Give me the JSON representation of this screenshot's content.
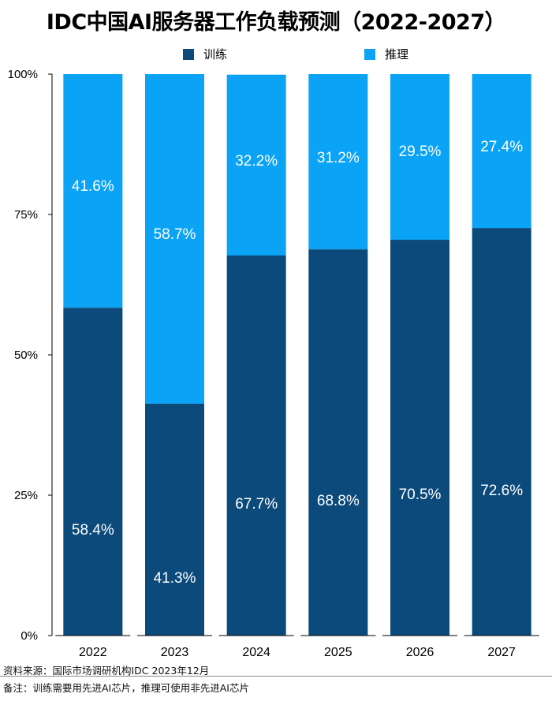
{
  "title": "IDC中国AI服务器工作负载预测（2022-2027）",
  "legend": [
    {
      "name": "训练",
      "color": "#0b4a7a"
    },
    {
      "name": "推理",
      "color": "#0aa3f5"
    }
  ],
  "footnotes": {
    "source": "资料来源：国际市场调研机构IDC 2023年12月",
    "note": "备注：训练需要用先进AI芯片，推理可使用非先进AI芯片"
  },
  "chart_data": {
    "type": "bar",
    "stacked": true,
    "categories": [
      "2022",
      "2023",
      "2024",
      "2025",
      "2026",
      "2027"
    ],
    "series": [
      {
        "name": "训练",
        "color": "#0b4a7a",
        "values": [
          58.4,
          41.3,
          67.7,
          68.8,
          70.5,
          72.6
        ],
        "labels": [
          "58.4%",
          "41.3%",
          "67.7%",
          "68.8%",
          "70.5%",
          "72.6%"
        ]
      },
      {
        "name": "推理",
        "color": "#0aa3f5",
        "values": [
          41.6,
          58.7,
          32.2,
          31.2,
          29.5,
          27.4
        ],
        "labels": [
          "41.6%",
          "58.7%",
          "32.2%",
          "31.2%",
          "29.5%",
          "27.4%"
        ]
      }
    ],
    "ylim": [
      0,
      100
    ],
    "yticks": [
      "0%",
      "25%",
      "50%",
      "75%",
      "100%"
    ],
    "legend_position": "top",
    "grid": false
  }
}
